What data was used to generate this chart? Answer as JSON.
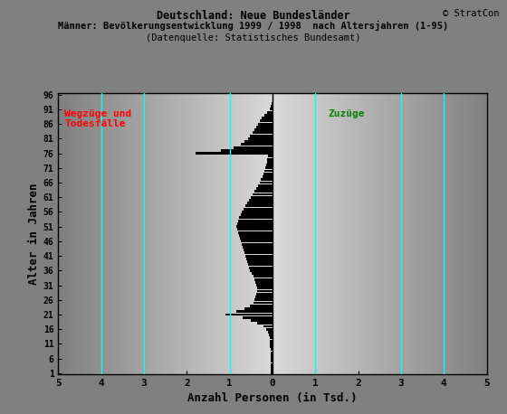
{
  "title_line1": "Deutschland: Neue Bundesländer",
  "title_line2": "Männer: Bevölkerungsentwicklung 1999 / 1998  nach Altersjahren (1-95)",
  "title_line3": "(Datenquelle: Statistisches Bundesamt)",
  "copyright": "© StratCon",
  "xlabel": "Anzahl Personen (in Tsd.)",
  "ylabel": "Alter in Jahren",
  "label_wegzuge": "Wegzüge und\nTodesfälle",
  "label_zuzuge": "Zuzüge",
  "xlim": [
    -5,
    5
  ],
  "ylim": [
    0.5,
    96.5
  ],
  "yticks": [
    1,
    6,
    11,
    16,
    21,
    26,
    31,
    36,
    41,
    46,
    51,
    56,
    61,
    66,
    71,
    76,
    81,
    86,
    91,
    96
  ],
  "xticks": [
    -5,
    -4,
    -3,
    -2,
    -1,
    0,
    1,
    2,
    3,
    4,
    5
  ],
  "xticklabels": [
    "5",
    "4",
    "3",
    "2",
    "1",
    "0",
    "1",
    "2",
    "3",
    "4",
    "5"
  ],
  "cyan_lines_x": [
    -4,
    -3,
    -1,
    1,
    3,
    4
  ],
  "bg_color": "#808080",
  "bar_color": "#000000",
  "bar_height": 0.9,
  "values_ages1to95": [
    -0.05,
    -0.04,
    -0.04,
    -0.04,
    -0.04,
    -0.05,
    -0.05,
    -0.05,
    -0.05,
    -0.06,
    -0.06,
    -0.07,
    -0.07,
    -0.08,
    -0.1,
    -0.15,
    -0.22,
    -0.35,
    -0.5,
    -0.7,
    -1.1,
    -0.85,
    -0.65,
    -0.52,
    -0.45,
    -0.42,
    -0.4,
    -0.38,
    -0.36,
    -0.35,
    -0.38,
    -0.4,
    -0.42,
    -0.45,
    -0.48,
    -0.52,
    -0.55,
    -0.58,
    -0.6,
    -0.62,
    -0.64,
    -0.66,
    -0.68,
    -0.7,
    -0.72,
    -0.74,
    -0.76,
    -0.78,
    -0.8,
    -0.82,
    -0.84,
    -0.82,
    -0.8,
    -0.78,
    -0.75,
    -0.72,
    -0.68,
    -0.64,
    -0.6,
    -0.55,
    -0.5,
    -0.46,
    -0.42,
    -0.38,
    -0.34,
    -0.3,
    -0.27,
    -0.24,
    -0.21,
    -0.18,
    -0.16,
    -0.14,
    -0.13,
    -0.12,
    -0.11,
    -1.8,
    -1.2,
    -0.9,
    -0.75,
    -0.65,
    -0.58,
    -0.52,
    -0.47,
    -0.42,
    -0.38,
    -0.34,
    -0.3,
    -0.25,
    -0.18,
    -0.12,
    -0.07,
    -0.04,
    -0.02,
    -0.01,
    0.0
  ]
}
